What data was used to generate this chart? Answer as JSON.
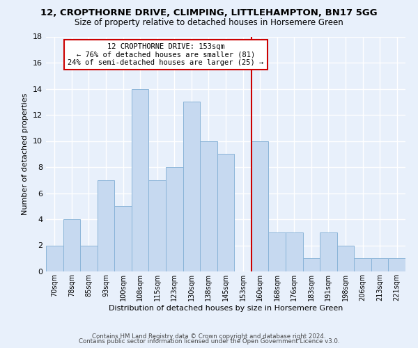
{
  "title_line1": "12, CROPTHORNE DRIVE, CLIMPING, LITTLEHAMPTON, BN17 5GG",
  "title_line2": "Size of property relative to detached houses in Horsemere Green",
  "xlabel": "Distribution of detached houses by size in Horsemere Green",
  "ylabel": "Number of detached properties",
  "bar_labels": [
    "70sqm",
    "78sqm",
    "85sqm",
    "93sqm",
    "100sqm",
    "108sqm",
    "115sqm",
    "123sqm",
    "130sqm",
    "138sqm",
    "145sqm",
    "153sqm",
    "160sqm",
    "168sqm",
    "176sqm",
    "183sqm",
    "191sqm",
    "198sqm",
    "206sqm",
    "213sqm",
    "221sqm"
  ],
  "bar_heights": [
    2,
    4,
    2,
    7,
    5,
    14,
    7,
    8,
    13,
    10,
    9,
    0,
    10,
    3,
    3,
    1,
    3,
    2,
    1,
    1,
    1
  ],
  "bar_color": "#c6d9f0",
  "bar_edge_color": "#8ab4d8",
  "reference_line_color": "#cc0000",
  "annotation_title": "12 CROPTHORNE DRIVE: 153sqm",
  "annotation_line1": "← 76% of detached houses are smaller (81)",
  "annotation_line2": "24% of semi-detached houses are larger (25) →",
  "annotation_box_edge": "#cc0000",
  "ylim": [
    0,
    18
  ],
  "yticks": [
    0,
    2,
    4,
    6,
    8,
    10,
    12,
    14,
    16,
    18
  ],
  "footer_line1": "Contains HM Land Registry data © Crown copyright and database right 2024.",
  "footer_line2": "Contains public sector information licensed under the Open Government Licence v3.0.",
  "background_color": "#e8f0fb",
  "grid_color": "white"
}
